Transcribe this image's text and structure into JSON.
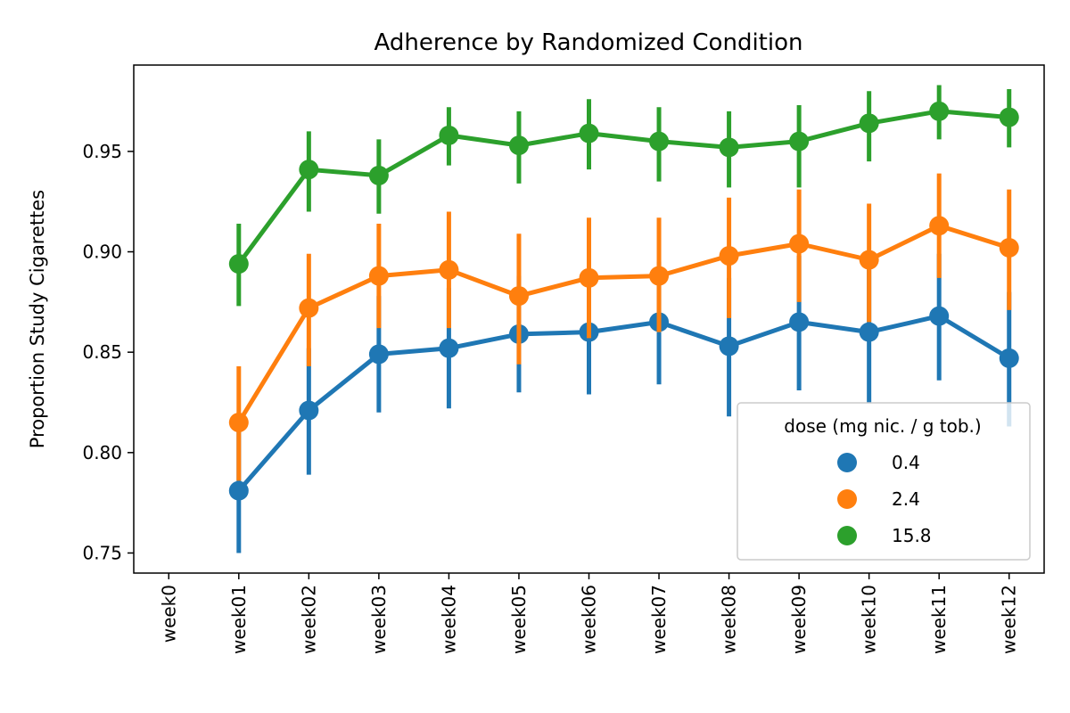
{
  "chart_data": {
    "type": "line",
    "title": "Adherence by Randomized Condition",
    "ylabel": "Proportion Study Cigarettes",
    "xlabel": "",
    "categories": [
      "week0",
      "week01",
      "week02",
      "week03",
      "week04",
      "week05",
      "week06",
      "week07",
      "week08",
      "week09",
      "week10",
      "week11",
      "week12"
    ],
    "ylim": [
      0.74,
      0.993
    ],
    "yticks": [
      0.75,
      0.8,
      0.85,
      0.9,
      0.95
    ],
    "ytick_labels": [
      "0.75",
      "0.80",
      "0.85",
      "0.90",
      "0.95"
    ],
    "grid": false,
    "legend": {
      "title": "dose (mg nic. / g tob.)",
      "position": "lower-right"
    },
    "series": [
      {
        "name": "0.4",
        "color": "#1f77b4",
        "values": [
          null,
          0.781,
          0.821,
          0.849,
          0.852,
          0.859,
          0.86,
          0.865,
          0.853,
          0.865,
          0.86,
          0.868,
          0.847
        ],
        "ci_low": [
          null,
          0.75,
          0.789,
          0.82,
          0.822,
          0.83,
          0.829,
          0.834,
          0.818,
          0.831,
          0.825,
          0.836,
          0.813
        ],
        "ci_high": [
          null,
          0.812,
          0.852,
          0.878,
          0.882,
          0.888,
          0.89,
          0.895,
          0.887,
          0.898,
          0.893,
          0.899,
          0.88
        ]
      },
      {
        "name": "2.4",
        "color": "#ff7f0e",
        "values": [
          null,
          0.815,
          0.872,
          0.888,
          0.891,
          0.878,
          0.887,
          0.888,
          0.898,
          0.904,
          0.896,
          0.913,
          0.902
        ],
        "ci_low": [
          null,
          0.786,
          0.843,
          0.862,
          0.862,
          0.844,
          0.857,
          0.86,
          0.867,
          0.875,
          0.865,
          0.887,
          0.871
        ],
        "ci_high": [
          null,
          0.843,
          0.899,
          0.914,
          0.92,
          0.909,
          0.917,
          0.917,
          0.927,
          0.931,
          0.924,
          0.939,
          0.931
        ]
      },
      {
        "name": "15.8",
        "color": "#2ca02c",
        "values": [
          null,
          0.894,
          0.941,
          0.938,
          0.958,
          0.953,
          0.959,
          0.955,
          0.952,
          0.955,
          0.964,
          0.97,
          0.967
        ],
        "ci_low": [
          null,
          0.873,
          0.92,
          0.919,
          0.943,
          0.934,
          0.941,
          0.935,
          0.932,
          0.932,
          0.945,
          0.956,
          0.952
        ],
        "ci_high": [
          null,
          0.914,
          0.96,
          0.956,
          0.972,
          0.97,
          0.976,
          0.972,
          0.97,
          0.973,
          0.98,
          0.983,
          0.981
        ]
      }
    ]
  }
}
